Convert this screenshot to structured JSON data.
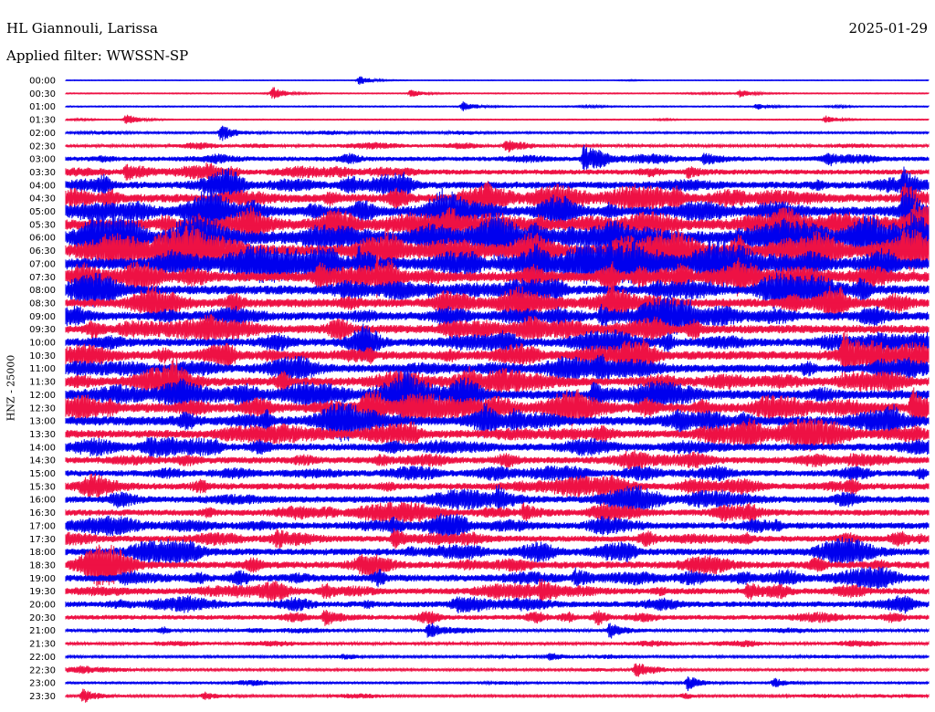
{
  "header": {
    "station": "HL Giannouli, Larissa",
    "date": "2025-01-29",
    "filter_label": "Applied filter:",
    "filter_value": "WWSSN-SP"
  },
  "chart_data": {
    "type": "line",
    "title": "HL Giannouli, Larissa",
    "ylabel": "HNZ - 25000",
    "xlabel": "",
    "trace_labels": [
      "00:00",
      "00:30",
      "01:00",
      "01:30",
      "02:00",
      "02:30",
      "03:00",
      "03:30",
      "04:00",
      "04:30",
      "05:00",
      "05:30",
      "06:00",
      "06:30",
      "07:00",
      "07:30",
      "08:00",
      "08:30",
      "09:00",
      "09:30",
      "10:00",
      "10:30",
      "11:00",
      "11:30",
      "12:00",
      "12:30",
      "13:00",
      "13:30",
      "14:00",
      "14:30",
      "15:00",
      "15:30",
      "16:00",
      "16:30",
      "17:00",
      "17:30",
      "18:00",
      "18:30",
      "19:00",
      "19:30",
      "20:00",
      "20:30",
      "21:00",
      "21:30",
      "22:00",
      "22:30",
      "23:00",
      "23:30"
    ],
    "trace_colors": [
      "#0000ee",
      "#ee1144"
    ],
    "noise_level": [
      0.3,
      0.5,
      0.6,
      0.5,
      1.0,
      1.6,
      2.5,
      2.8,
      3.8,
      4.6,
      5.2,
      5.8,
      7.0,
      6.4,
      6.4,
      5.5,
      5.0,
      4.8,
      4.6,
      4.6,
      4.4,
      4.8,
      4.4,
      4.6,
      5.0,
      5.2,
      5.0,
      4.4,
      4.0,
      3.6,
      3.4,
      3.6,
      3.6,
      3.4,
      3.6,
      3.4,
      3.8,
      3.8,
      3.8,
      3.4,
      3.2,
      2.6,
      1.6,
      1.6,
      1.2,
      1.2,
      1.0,
      1.2
    ],
    "events": [
      {
        "trace": 0,
        "t": 0.34,
        "amp": 5
      },
      {
        "trace": 1,
        "t": 0.24,
        "amp": 6
      },
      {
        "trace": 1,
        "t": 0.4,
        "amp": 4
      },
      {
        "trace": 1,
        "t": 0.78,
        "amp": 4
      },
      {
        "trace": 2,
        "t": 0.46,
        "amp": 5
      },
      {
        "trace": 2,
        "t": 0.8,
        "amp": 3
      },
      {
        "trace": 3,
        "t": 0.07,
        "amp": 6
      },
      {
        "trace": 3,
        "t": 0.88,
        "amp": 4
      },
      {
        "trace": 4,
        "t": 0.18,
        "amp": 9
      },
      {
        "trace": 5,
        "t": 0.51,
        "amp": 7
      },
      {
        "trace": 6,
        "t": 0.6,
        "amp": 13
      },
      {
        "trace": 6,
        "t": 0.74,
        "amp": 6
      },
      {
        "trace": 7,
        "t": 0.07,
        "amp": 7
      },
      {
        "trace": 7,
        "t": 0.72,
        "amp": 5
      },
      {
        "trace": 8,
        "t": 0.97,
        "amp": 14
      },
      {
        "trace": 9,
        "t": 0.97,
        "amp": 16
      },
      {
        "trace": 10,
        "t": 0.97,
        "amp": 22
      },
      {
        "trace": 11,
        "t": 0.98,
        "amp": 24
      },
      {
        "trace": 12,
        "t": 0.54,
        "amp": 14
      },
      {
        "trace": 12,
        "t": 0.98,
        "amp": 16
      },
      {
        "trace": 13,
        "t": 0.37,
        "amp": 10
      },
      {
        "trace": 14,
        "t": 0.34,
        "amp": 12
      },
      {
        "trace": 15,
        "t": 0.36,
        "amp": 14
      },
      {
        "trace": 17,
        "t": 0.63,
        "amp": 12
      },
      {
        "trace": 18,
        "t": 0.62,
        "amp": 10
      },
      {
        "trace": 21,
        "t": 0.9,
        "amp": 22
      },
      {
        "trace": 24,
        "t": 0.45,
        "amp": 12
      },
      {
        "trace": 24,
        "t": 0.61,
        "amp": 14
      },
      {
        "trace": 25,
        "t": 0.98,
        "amp": 22
      },
      {
        "trace": 32,
        "t": 0.5,
        "amp": 10
      },
      {
        "trace": 33,
        "t": 0.53,
        "amp": 8
      },
      {
        "trace": 35,
        "t": 0.38,
        "amp": 9
      },
      {
        "trace": 38,
        "t": 0.59,
        "amp": 8
      },
      {
        "trace": 39,
        "t": 0.55,
        "amp": 9
      },
      {
        "trace": 39,
        "t": 0.79,
        "amp": 8
      },
      {
        "trace": 41,
        "t": 0.3,
        "amp": 8
      },
      {
        "trace": 42,
        "t": 0.42,
        "amp": 9
      },
      {
        "trace": 42,
        "t": 0.63,
        "amp": 8
      },
      {
        "trace": 44,
        "t": 0.56,
        "amp": 4
      },
      {
        "trace": 45,
        "t": 0.66,
        "amp": 8
      },
      {
        "trace": 46,
        "t": 0.72,
        "amp": 8
      },
      {
        "trace": 46,
        "t": 0.82,
        "amp": 5
      },
      {
        "trace": 47,
        "t": 0.02,
        "amp": 8
      },
      {
        "trace": 47,
        "t": 0.16,
        "amp": 4
      }
    ]
  }
}
